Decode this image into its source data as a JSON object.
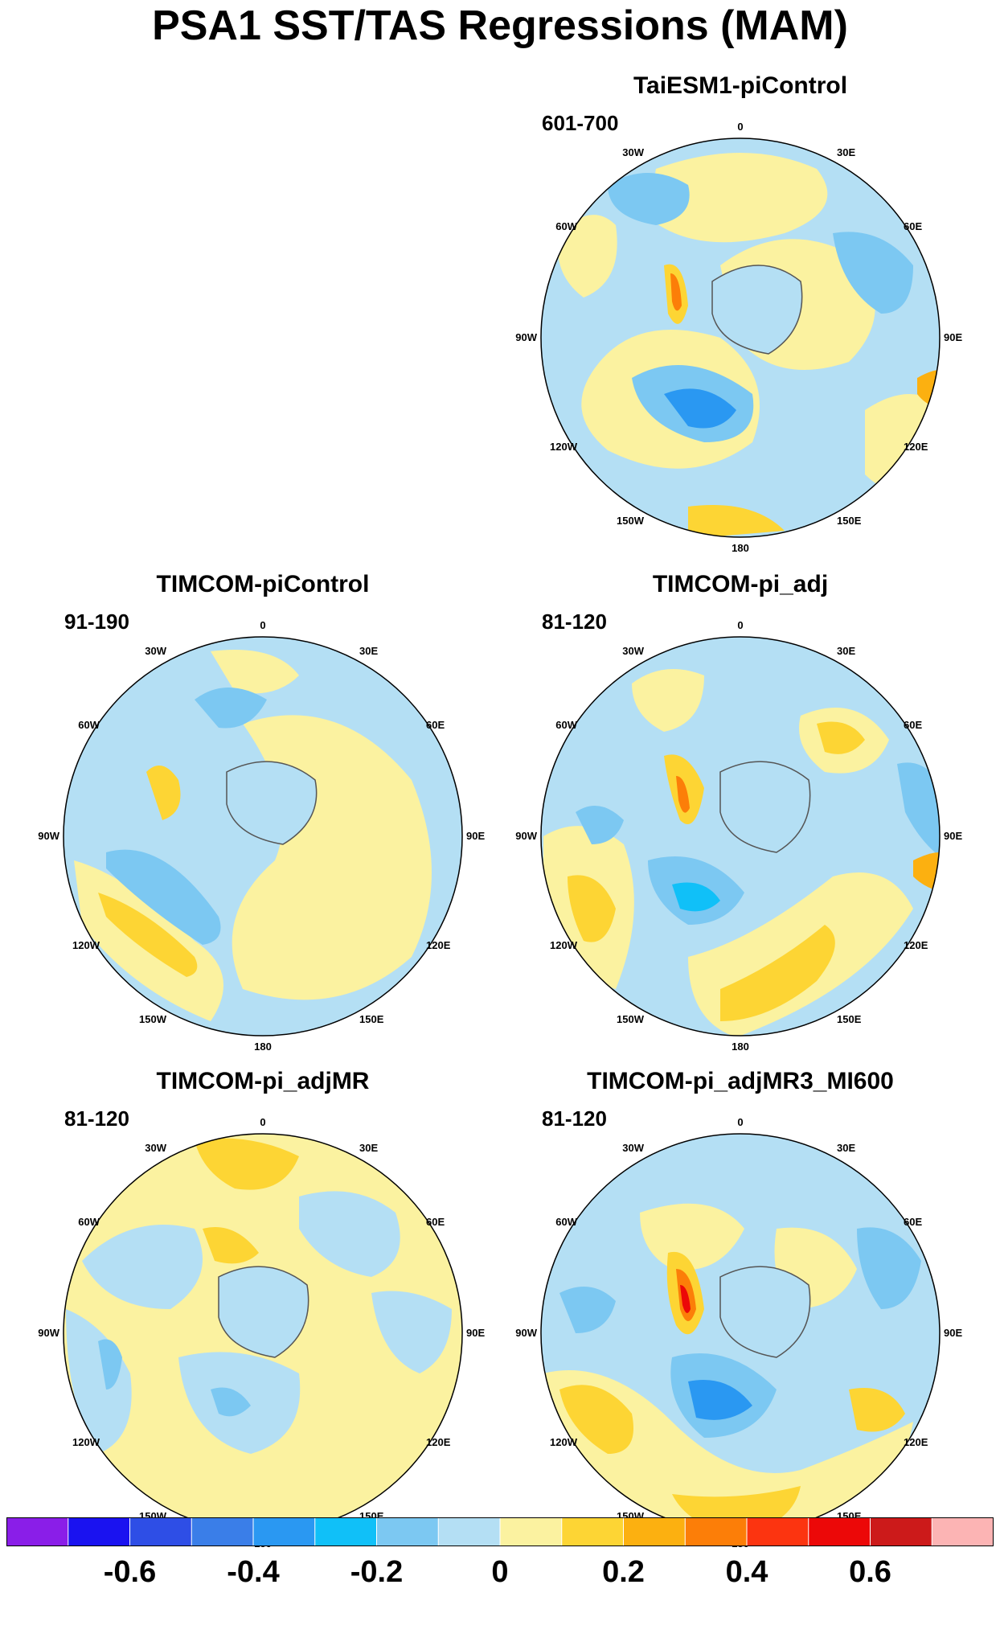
{
  "title": "PSA1 SST/TAS Regressions (MAM)",
  "longitude_labels": [
    "0",
    "30E",
    "60E",
    "90E",
    "120E",
    "150E",
    "180",
    "150W",
    "120W",
    "90W",
    "60W",
    "30W"
  ],
  "panels": [
    {
      "id": "taiesm1",
      "title": "TaiESM1-piControl",
      "years": "601-700"
    },
    {
      "id": "timcom-picontrol",
      "title": "TIMCOM-piControl",
      "years": "91-190"
    },
    {
      "id": "timcom-pi-adj",
      "title": "TIMCOM-pi_adj",
      "years": "81-120"
    },
    {
      "id": "timcom-pi-adjmr",
      "title": "TIMCOM-pi_adjMR",
      "years": "81-120"
    },
    {
      "id": "timcom-pi-adjmr3-mi600",
      "title": "TIMCOM-pi_adjMR3_MI600",
      "years": "81-120"
    }
  ],
  "colorbar": {
    "colors": [
      "#8a1ee8",
      "#1a12f0",
      "#2e4ee6",
      "#3a7ee8",
      "#2a98f2",
      "#10c0f8",
      "#7cc8f2",
      "#b4dff4",
      "#fbf2a0",
      "#fdd534",
      "#fcb010",
      "#fc7e08",
      "#fc3410",
      "#ec0808",
      "#cc1a1a",
      "#fcb4b4"
    ],
    "tick_labels": [
      "-0.6",
      "-0.4",
      "-0.2",
      "0",
      "0.2",
      "0.4",
      "0.6"
    ]
  }
}
